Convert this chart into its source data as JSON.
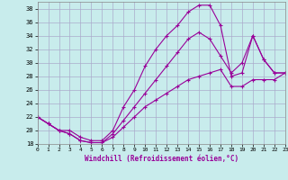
{
  "xlabel": "Windchill (Refroidissement éolien,°C)",
  "background_color": "#c8ecec",
  "line_color": "#990099",
  "grid_color": "#aaaacc",
  "xlim": [
    0,
    23
  ],
  "ylim": [
    18,
    39
  ],
  "xticks": [
    0,
    1,
    2,
    3,
    4,
    5,
    6,
    7,
    8,
    9,
    10,
    11,
    12,
    13,
    14,
    15,
    16,
    17,
    18,
    19,
    20,
    21,
    22,
    23
  ],
  "yticks": [
    18,
    20,
    22,
    24,
    26,
    28,
    30,
    32,
    34,
    36,
    38
  ],
  "curve1_x": [
    0,
    1,
    2,
    3,
    4,
    5,
    6,
    7,
    8,
    9,
    10,
    11,
    12,
    13,
    14,
    15,
    16,
    17,
    18,
    19,
    20,
    21,
    22,
    23
  ],
  "curve1_y": [
    22.0,
    21.0,
    20.0,
    20.0,
    19.0,
    18.5,
    18.5,
    20.0,
    23.5,
    26.0,
    29.5,
    32.0,
    34.0,
    35.5,
    37.5,
    38.5,
    38.5,
    35.5,
    28.0,
    28.5,
    34.0,
    30.5,
    28.5,
    28.5
  ],
  "curve2_x": [
    0,
    1,
    2,
    3,
    4,
    5,
    6,
    7,
    8,
    9,
    10,
    11,
    12,
    13,
    14,
    15,
    16,
    17,
    18,
    19,
    20,
    21,
    22,
    23
  ],
  "curve2_y": [
    22.0,
    21.0,
    20.0,
    19.5,
    18.5,
    18.2,
    18.2,
    19.5,
    21.5,
    23.5,
    25.5,
    27.5,
    29.5,
    31.5,
    33.5,
    34.5,
    33.5,
    31.0,
    28.5,
    30.0,
    34.0,
    30.5,
    28.5,
    28.5
  ],
  "curve3_x": [
    0,
    1,
    2,
    3,
    4,
    5,
    6,
    7,
    8,
    9,
    10,
    11,
    12,
    13,
    14,
    15,
    16,
    17,
    18,
    19,
    20,
    21,
    22,
    23
  ],
  "curve3_y": [
    22.0,
    21.0,
    20.0,
    19.5,
    18.5,
    18.2,
    18.2,
    19.0,
    20.5,
    22.0,
    23.5,
    24.5,
    25.5,
    26.5,
    27.5,
    28.0,
    28.5,
    29.0,
    26.5,
    26.5,
    27.5,
    27.5,
    27.5,
    28.5
  ]
}
